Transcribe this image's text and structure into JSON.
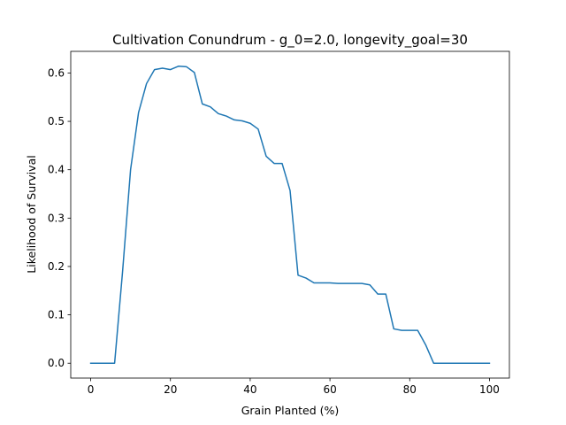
{
  "chart_data": {
    "type": "line",
    "title": "Cultivation Conundrum - g_0=2.0, longevity_goal=30",
    "xlabel": "Grain Planted (%)",
    "ylabel": "Likelihood of Survival",
    "xlim": [
      -5,
      105
    ],
    "ylim": [
      -0.0307,
      0.6447
    ],
    "xticks": [
      0,
      20,
      40,
      60,
      80,
      100
    ],
    "xtick_labels": [
      "0",
      "20",
      "40",
      "60",
      "80",
      "100"
    ],
    "yticks": [
      0.0,
      0.1,
      0.2,
      0.3,
      0.4,
      0.5,
      0.6
    ],
    "ytick_labels": [
      "0.0",
      "0.1",
      "0.2",
      "0.3",
      "0.4",
      "0.5",
      "0.6"
    ],
    "grid": false,
    "color": "#1f77b4",
    "series": [
      {
        "x": [
          0,
          2,
          4,
          6,
          8,
          10,
          12,
          14,
          16,
          18,
          20,
          22,
          24,
          26,
          28,
          30,
          32,
          34,
          36,
          38,
          40,
          42,
          44,
          46,
          48,
          50,
          52,
          54,
          56,
          58,
          60,
          62,
          64,
          66,
          68,
          70,
          72,
          74,
          76,
          78,
          80,
          82,
          84,
          86,
          88,
          90,
          92,
          94,
          96,
          98,
          100
        ],
        "y": [
          0.0,
          0.0,
          0.0,
          0.0,
          0.19,
          0.4,
          0.518,
          0.578,
          0.607,
          0.61,
          0.607,
          0.614,
          0.613,
          0.601,
          0.536,
          0.53,
          0.516,
          0.511,
          0.503,
          0.501,
          0.496,
          0.484,
          0.428,
          0.413,
          0.413,
          0.357,
          0.182,
          0.176,
          0.166,
          0.166,
          0.166,
          0.165,
          0.165,
          0.165,
          0.165,
          0.162,
          0.143,
          0.143,
          0.071,
          0.068,
          0.068,
          0.068,
          0.038,
          0.0,
          0.0,
          0.0,
          0.0,
          0.0,
          0.0,
          0.0,
          0.0
        ]
      }
    ]
  }
}
